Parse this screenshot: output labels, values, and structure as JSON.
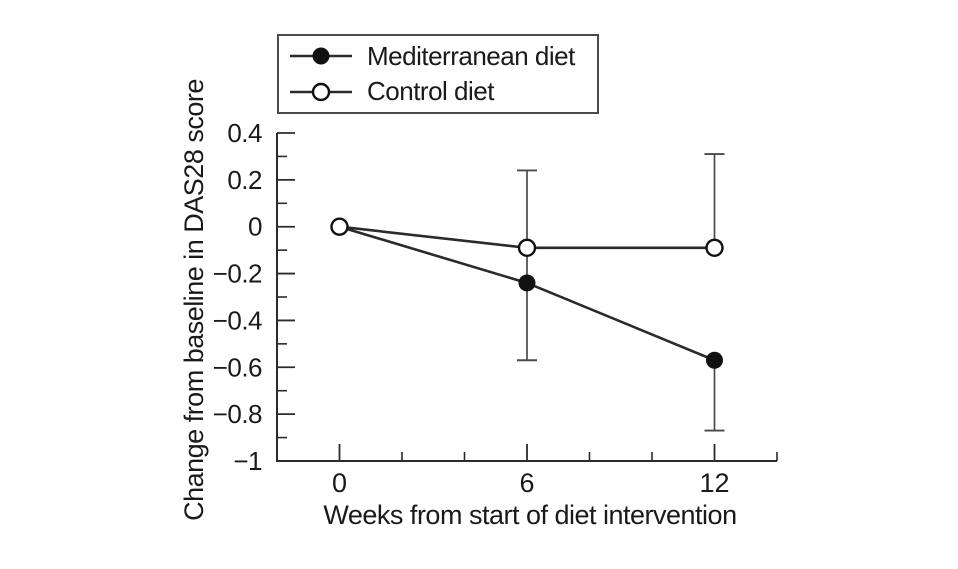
{
  "chart_data": {
    "type": "line",
    "title": "",
    "xlabel": "Weeks from start of diet intervention",
    "ylabel": "Change from baseline in DAS28 score",
    "xlim": [
      -2,
      14
    ],
    "ylim": [
      -1,
      0.4
    ],
    "x_ticks_major": [
      0,
      6,
      12
    ],
    "x_tick_labels": [
      "0",
      "6",
      "12"
    ],
    "x_ticks_minor": [
      2,
      4,
      8,
      10,
      14
    ],
    "y_ticks_major": [
      0.4,
      0.2,
      0,
      -0.2,
      -0.4,
      -0.6,
      -0.8,
      -1
    ],
    "y_tick_labels": [
      "0.4",
      "0.2",
      "0",
      "−0.2",
      "−0.4",
      "−0.6",
      "−0.8",
      "−1"
    ],
    "y_ticks_minor": [
      0.3,
      0.1,
      -0.1,
      -0.3,
      -0.5,
      -0.7,
      -0.9
    ],
    "x": [
      0,
      6,
      12
    ],
    "series": [
      {
        "name": "Mediterranean diet",
        "marker": "filled-circle",
        "values": [
          0,
          -0.24,
          -0.57
        ]
      },
      {
        "name": "Control diet",
        "marker": "open-circle",
        "values": [
          0,
          -0.09,
          -0.09
        ]
      }
    ],
    "error_bars": [
      {
        "week": 6,
        "top": 0.24,
        "bottom": -0.57,
        "cap_top": true,
        "cap_bottom": true
      },
      {
        "week": 12,
        "top": 0.31,
        "bottom": -0.09,
        "cap_top": true,
        "cap_bottom": false
      },
      {
        "week": 12,
        "top": -0.57,
        "bottom": -0.87,
        "cap_top": false,
        "cap_bottom": true
      }
    ],
    "legend": {
      "position": "top",
      "entries": [
        "Mediterranean diet",
        "Control diet"
      ]
    },
    "grid": false
  },
  "colors": {
    "ink": "#1a1a1a",
    "line": "#2b2b2b",
    "error_bar": "#4a4a4a",
    "legend_border": "#4a4a4a",
    "marker_fill": "#111111",
    "open_marker_fill": "#ffffff",
    "background": "#ffffff"
  }
}
